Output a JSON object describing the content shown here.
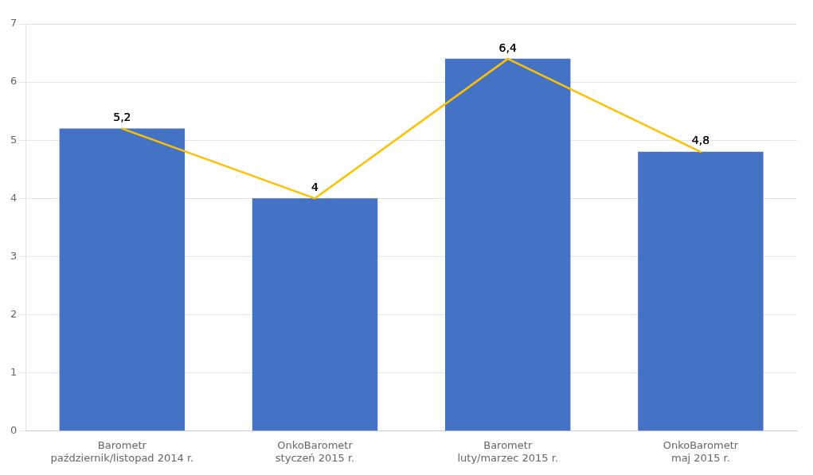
{
  "chart_data": {
    "type": "bar",
    "categories": [
      "Barometr\npaździernik/listopad 2014 r.",
      "OnkoBarometr\nstyczeń 2015 r.",
      "Barometr\nluty/marzec 2015 r.",
      "OnkoBarometr\nmaj 2015 r."
    ],
    "series": [
      {
        "type": "bar",
        "color": "#4472C4",
        "values": [
          5.2,
          4.0,
          6.4,
          4.8
        ],
        "value_labels": [
          "5,2",
          "4",
          "6,4",
          "4,8"
        ]
      },
      {
        "type": "line",
        "color": "#FFC000",
        "values": [
          5.2,
          4.0,
          6.4,
          4.8
        ]
      }
    ],
    "ylim": [
      0,
      7
    ],
    "yticks": [
      0,
      1,
      2,
      3,
      4,
      5,
      6,
      7
    ],
    "grid": true,
    "data_labels": true
  }
}
